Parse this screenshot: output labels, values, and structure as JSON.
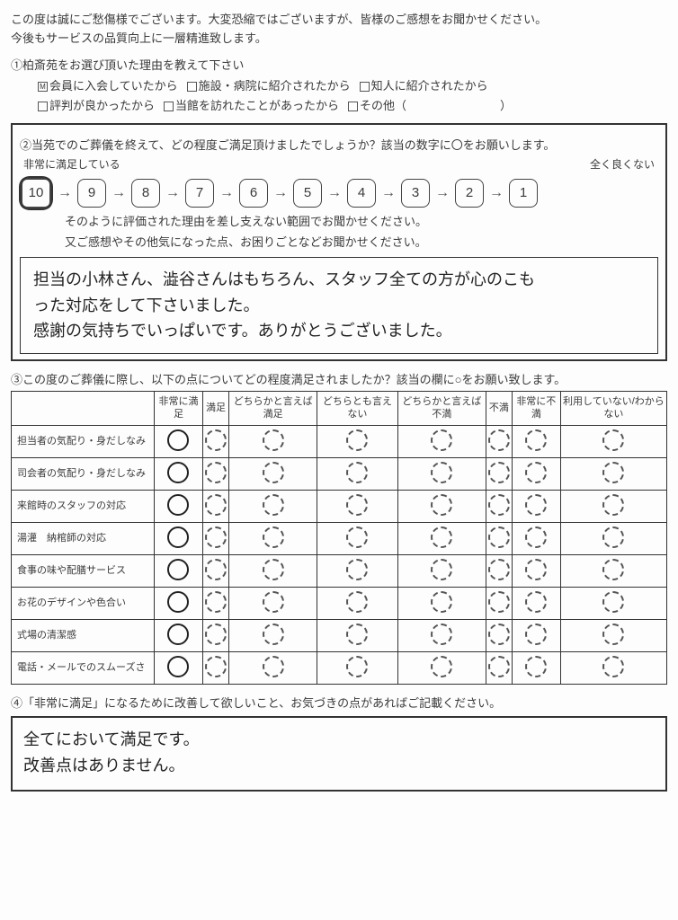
{
  "intro_l1": "この度は誠にご愁傷様でございます。大変恐縮ではございますが、皆様のご感想をお聞かせください。",
  "intro_l2": "今後もサービスの品質向上に一層精進致します。",
  "q1": {
    "title": "①柏斎苑をお選び頂いた理由を教えて下さい",
    "opts": [
      {
        "label": "会員に入会していたから",
        "checked": true
      },
      {
        "label": "施設・病院に紹介されたから",
        "checked": false
      },
      {
        "label": "知人に紹介されたから",
        "checked": false
      },
      {
        "label": "評判が良かったから",
        "checked": false
      },
      {
        "label": "当館を訪れたことがあったから",
        "checked": false
      },
      {
        "label": "その他（　　　　　　　　）",
        "checked": false
      }
    ]
  },
  "q2": {
    "title": "②当苑でのご葬儀を終えて、どの程度ご満足頂けましたでしょうか？該当の数字に〇をお願いします。",
    "left": "非常に満足している",
    "right": "全く良くない",
    "scale": [
      10,
      9,
      8,
      7,
      6,
      5,
      4,
      3,
      2,
      1
    ],
    "selected": 10,
    "sub1": "そのように評価された理由を差し支えない範囲でお聞かせください。",
    "sub2": "又ご感想やその他気になった点、お困りごとなどお聞かせください。",
    "ans_l1": "担当の小林さん、澁谷さんはもちろん、スタッフ全ての方が心のこも",
    "ans_l2": "った対応をして下さいました。",
    "ans_l3": "感謝の気持ちでいっぱいです。ありがとうございました。"
  },
  "q3": {
    "title": "③この度のご葬儀に際し、以下の点についてどの程度満足されましたか？該当の欄に○をお願い致します。",
    "cols": [
      "非常に満足",
      "満足",
      "どちらかと言えば満足",
      "どちらとも言えない",
      "どちらかと言えば不満",
      "不満",
      "非常に不満",
      "利用していない/わからない"
    ],
    "rows": [
      "担当者の気配り・身だしなみ",
      "司会者の気配り・身だしなみ",
      "来館時のスタッフの対応",
      "湯灌　納棺師の対応",
      "食事の味や配膳サービス",
      "お花のデザインや色合い",
      "式場の清潔感",
      "電話・メールでのスムーズさ"
    ],
    "selected_col": 0
  },
  "q4": {
    "title": "④「非常に満足」になるために改善して欲しいこと、お気づきの点があればご記載ください。",
    "ans_l1": "全てにおいて満足です。",
    "ans_l2": "改善点はありません。"
  }
}
